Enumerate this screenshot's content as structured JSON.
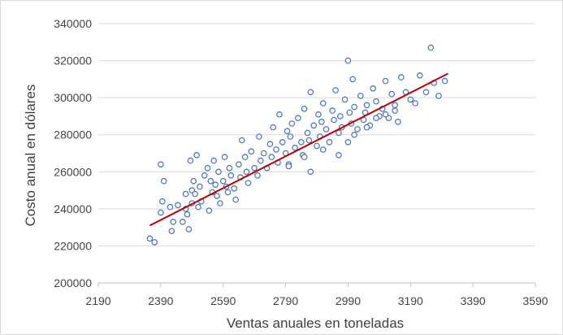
{
  "chart_data": {
    "type": "scatter",
    "xlabel": "Ventas anuales en toneladas",
    "ylabel": "Costo anual en dólares",
    "xlim": [
      2190,
      3590
    ],
    "ylim": [
      200000,
      340000
    ],
    "xticks": [
      2190,
      2390,
      2590,
      2790,
      2990,
      3190,
      3390,
      3590
    ],
    "yticks": [
      200000,
      220000,
      240000,
      260000,
      280000,
      300000,
      320000,
      340000
    ],
    "x_tick_labels": [
      "2190",
      "2390",
      "2590",
      "2790",
      "2990",
      "3190",
      "3390",
      "3590"
    ],
    "y_tick_labels": [
      "200000",
      "220000",
      "240000",
      "260000",
      "280000",
      "300000",
      "320000",
      "340000"
    ],
    "grid": "horizontal",
    "legend": "none",
    "colors": {
      "marker_edge": "#4472c4",
      "marker_fill": "#ffffff",
      "trendline": "#c00000",
      "grid": "#d9d9d9"
    },
    "trendline": {
      "x": [
        2355,
        3310
      ],
      "y": [
        231000,
        313000
      ]
    },
    "series": [
      {
        "x": [
          2355,
          2370,
          2390,
          2390,
          2395,
          2400,
          2420,
          2425,
          2430,
          2445,
          2460,
          2470,
          2470,
          2475,
          2480,
          2485,
          2490,
          2490,
          2495,
          2500,
          2505,
          2510,
          2515,
          2520,
          2530,
          2540,
          2545,
          2550,
          2555,
          2560,
          2565,
          2570,
          2575,
          2580,
          2590,
          2595,
          2600,
          2605,
          2610,
          2615,
          2625,
          2630,
          2640,
          2645,
          2650,
          2660,
          2665,
          2670,
          2680,
          2690,
          2700,
          2705,
          2710,
          2720,
          2730,
          2740,
          2745,
          2750,
          2760,
          2765,
          2770,
          2780,
          2790,
          2795,
          2800,
          2805,
          2810,
          2820,
          2830,
          2840,
          2845,
          2850,
          2860,
          2865,
          2870,
          2880,
          2890,
          2895,
          2900,
          2905,
          2910,
          2920,
          2930,
          2940,
          2945,
          2950,
          2960,
          2965,
          2970,
          2980,
          2990,
          2995,
          3000,
          3005,
          3010,
          3020,
          3030,
          3040,
          3045,
          3050,
          3060,
          3070,
          3080,
          3090,
          3100,
          3110,
          3120,
          3130,
          3140,
          3150,
          3160,
          3175,
          3190,
          3205,
          3220,
          3240,
          3255,
          3265,
          3280,
          3300
        ],
        "y": [
          224000,
          222000,
          264000,
          238000,
          244000,
          255000,
          241000,
          228000,
          233000,
          242000,
          233000,
          240000,
          248000,
          237000,
          229000,
          266000,
          243000,
          250000,
          255000,
          248000,
          269000,
          241000,
          252000,
          244000,
          258000,
          262000,
          239000,
          255000,
          249000,
          266000,
          253000,
          247000,
          260000,
          243000,
          255000,
          268000,
          252000,
          249000,
          262000,
          258000,
          251000,
          245000,
          264000,
          257000,
          277000,
          268000,
          260000,
          254000,
          271000,
          262000,
          258000,
          279000,
          266000,
          270000,
          262000,
          275000,
          268000,
          284000,
          272000,
          265000,
          291000,
          276000,
          270000,
          282000,
          264000,
          279000,
          286000,
          273000,
          289000,
          276000,
          269000,
          294000,
          281000,
          277000,
          303000,
          285000,
          274000,
          291000,
          279000,
          287000,
          297000,
          283000,
          276000,
          293000,
          288000,
          304000,
          281000,
          290000,
          284000,
          299000,
          276000,
          292000,
          286000,
          310000,
          295000,
          283000,
          301000,
          288000,
          292000,
          296000,
          285000,
          305000,
          298000,
          290000,
          294000,
          309000,
          289000,
          302000,
          296000,
          287000,
          311000,
          303000,
          299000,
          297000,
          312000,
          303000,
          327000,
          308000,
          301000,
          309000
        ],
        "extra_x": [
          2800,
          2850,
          2870,
          2910,
          2960,
          2990,
          3010,
          3050,
          3080,
          3110,
          3140
        ],
        "extra_y": [
          263000,
          268000,
          260000,
          272000,
          269000,
          320000,
          280000,
          284000,
          289000,
          291000,
          293000
        ]
      }
    ]
  }
}
